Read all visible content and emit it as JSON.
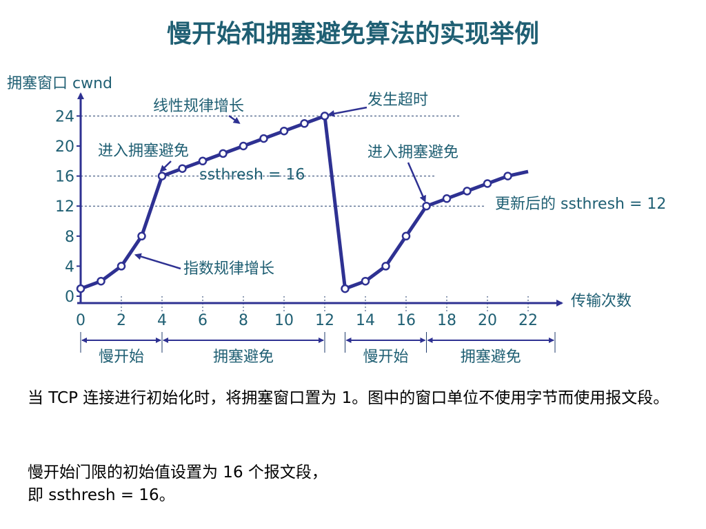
{
  "title": "慢开始和拥塞避免算法的实现举例",
  "chart_data": {
    "type": "line",
    "ylabel": "拥塞窗口 cwnd",
    "xlabel": "传输次数",
    "xlim": [
      0,
      23
    ],
    "ylim": [
      0,
      26
    ],
    "x_ticks": [
      "0",
      "2",
      "4",
      "6",
      "8",
      "10",
      "12",
      "14",
      "16",
      "18",
      "20",
      "22"
    ],
    "y_ticks": [
      "0",
      "4",
      "8",
      "12",
      "16",
      "20",
      "24"
    ],
    "reference_lines": [
      {
        "y": 24
      },
      {
        "y": 16,
        "label": "ssthresh = 16"
      },
      {
        "y": 12,
        "label": "更新后的 ssthresh = 12"
      }
    ],
    "series": [
      {
        "x": [
          0,
          1,
          2,
          3,
          4,
          5,
          6,
          7,
          8,
          9,
          10,
          11,
          12,
          13,
          14,
          15,
          16,
          17,
          18,
          19,
          20,
          21
        ],
        "y": [
          1,
          2,
          4,
          8,
          16,
          17,
          18,
          19,
          20,
          21,
          22,
          23,
          24,
          1,
          2,
          4,
          8,
          12,
          13,
          14,
          15,
          16
        ]
      }
    ],
    "line_extension": {
      "to": [
        22,
        16.6
      ]
    },
    "annotations": [
      {
        "text": "线性规律增长",
        "point": [
          8,
          22.5
        ]
      },
      {
        "text": "发生超时",
        "point": [
          12,
          24
        ]
      },
      {
        "text": "进入拥塞避免",
        "point": [
          4,
          16
        ]
      },
      {
        "text": "进入拥塞避免",
        "point": [
          17,
          12
        ]
      },
      {
        "text": "指数规律增长",
        "point": [
          2.5,
          5.5
        ]
      }
    ],
    "phases": [
      {
        "label": "慢开始",
        "from": 0,
        "to": 4
      },
      {
        "label": "拥塞避免",
        "from": 4,
        "to": 12
      },
      {
        "label": "慢开始",
        "from": 13,
        "to": 17
      },
      {
        "label": "拥塞避免",
        "from": 17,
        "to": 23
      }
    ],
    "colors": {
      "line": "#2e3192",
      "marker_fill": "#ffffff",
      "text": "#1f5f73"
    }
  },
  "paragraphs": [
    "当 TCP 连接进行初始化时，将拥塞窗口置为 1。图中的窗口单位不使用字节而使用报文段。",
    "慢开始门限的初始值设置为 16 个报文段，\n即 ssthresh = 16。"
  ]
}
